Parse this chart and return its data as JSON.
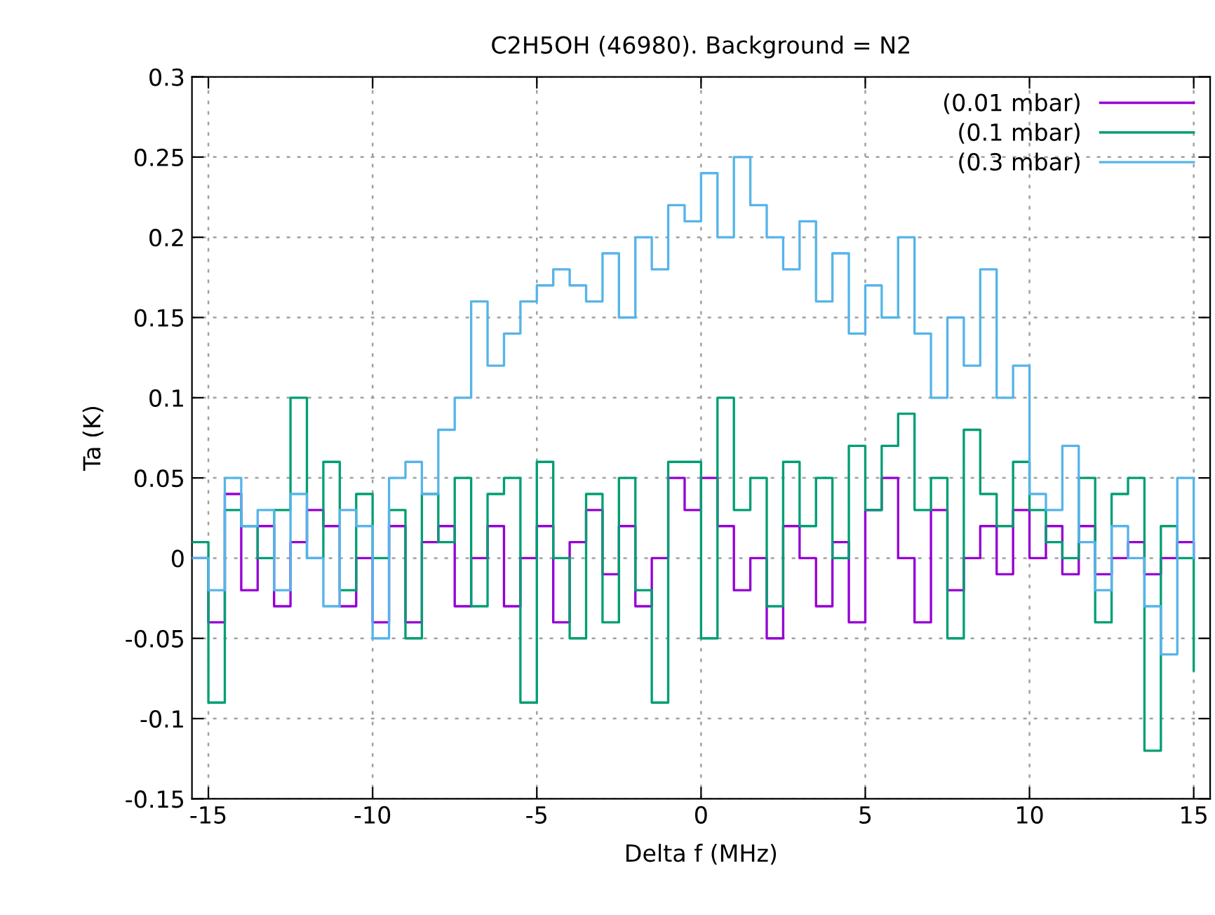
{
  "chart_data": {
    "type": "step",
    "title": "C2H5OH (46980). Background = N2",
    "xlabel": "Delta f (MHz)",
    "ylabel": "Ta (K)",
    "x": [
      -15.5,
      -15,
      -14.5,
      -14,
      -13.5,
      -13,
      -12.5,
      -12,
      -11.5,
      -11,
      -10.5,
      -10,
      -9.5,
      -9,
      -8.5,
      -8,
      -7.5,
      -7,
      -6.5,
      -6,
      -5.5,
      -5,
      -4.5,
      -4,
      -3.5,
      -3,
      -2.5,
      -2,
      -1.5,
      -1,
      -0.5,
      0,
      0.5,
      1,
      1.5,
      2,
      2.5,
      3,
      3.5,
      4,
      4.5,
      5,
      5.5,
      6,
      6.5,
      7,
      7.5,
      8,
      8.5,
      9,
      9.5,
      10,
      10.5,
      11,
      11.5,
      12,
      12.5,
      13,
      13.5,
      14,
      14.5,
      15
    ],
    "series": [
      {
        "name": "(0.01 mbar)",
        "color": "#9400d3",
        "values": [
          0.0,
          -0.04,
          0.04,
          -0.02,
          0.02,
          -0.03,
          0.01,
          0.03,
          0.02,
          -0.03,
          0.0,
          -0.04,
          0.02,
          -0.04,
          0.01,
          0.02,
          -0.03,
          0.0,
          0.02,
          -0.03,
          0.0,
          0.02,
          -0.04,
          0.01,
          0.03,
          -0.01,
          0.02,
          -0.03,
          0.0,
          0.05,
          0.03,
          0.05,
          0.02,
          -0.02,
          0.0,
          -0.05,
          0.02,
          0.0,
          -0.03,
          0.01,
          -0.04,
          0.03,
          0.05,
          0.0,
          -0.04,
          0.03,
          -0.02,
          0.0,
          0.02,
          -0.01,
          0.03,
          0.0,
          0.02,
          -0.01,
          0.02,
          -0.01,
          0.0,
          0.01,
          -0.01,
          0.0,
          0.01,
          0.0
        ]
      },
      {
        "name": "(0.1 mbar)",
        "color": "#009e73",
        "values": [
          0.01,
          -0.09,
          0.03,
          0.02,
          0.0,
          0.03,
          0.1,
          0.0,
          0.06,
          -0.02,
          0.04,
          0.0,
          0.03,
          -0.05,
          0.04,
          0.01,
          0.05,
          -0.03,
          0.04,
          0.05,
          -0.09,
          0.06,
          0.0,
          -0.05,
          0.04,
          -0.04,
          0.05,
          -0.02,
          -0.09,
          0.06,
          0.06,
          -0.05,
          0.1,
          0.03,
          0.05,
          -0.03,
          0.06,
          0.02,
          0.05,
          0.0,
          0.07,
          0.03,
          0.07,
          0.09,
          0.03,
          0.05,
          -0.05,
          0.08,
          0.04,
          0.02,
          0.06,
          0.03,
          0.01,
          0.0,
          0.05,
          -0.04,
          0.04,
          0.05,
          -0.12,
          0.02,
          0.0,
          -0.07
        ]
      },
      {
        "name": "(0.3 mbar)",
        "color": "#56b4e9",
        "values": [
          0.0,
          -0.02,
          0.05,
          0.02,
          0.03,
          -0.02,
          0.04,
          0.0,
          -0.03,
          0.03,
          0.02,
          -0.05,
          0.05,
          0.06,
          0.04,
          0.08,
          0.1,
          0.16,
          0.12,
          0.14,
          0.16,
          0.17,
          0.18,
          0.17,
          0.16,
          0.19,
          0.15,
          0.2,
          0.18,
          0.22,
          0.21,
          0.24,
          0.2,
          0.25,
          0.22,
          0.2,
          0.18,
          0.21,
          0.16,
          0.19,
          0.14,
          0.17,
          0.15,
          0.2,
          0.14,
          0.1,
          0.15,
          0.12,
          0.18,
          0.1,
          0.12,
          0.04,
          0.03,
          0.07,
          0.01,
          -0.02,
          0.02,
          0.0,
          -0.03,
          -0.06,
          0.05,
          0.0
        ]
      }
    ],
    "xlim": [
      -15.5,
      15.5
    ],
    "ylim": [
      -0.15,
      0.3
    ],
    "xticks": [
      -15,
      -10,
      -5,
      0,
      5,
      10,
      15
    ],
    "yticks": [
      -0.15,
      -0.1,
      -0.05,
      0,
      0.05,
      0.1,
      0.15,
      0.2,
      0.25,
      0.3
    ],
    "grid": true,
    "legend": "top right",
    "line_style": "solid"
  }
}
